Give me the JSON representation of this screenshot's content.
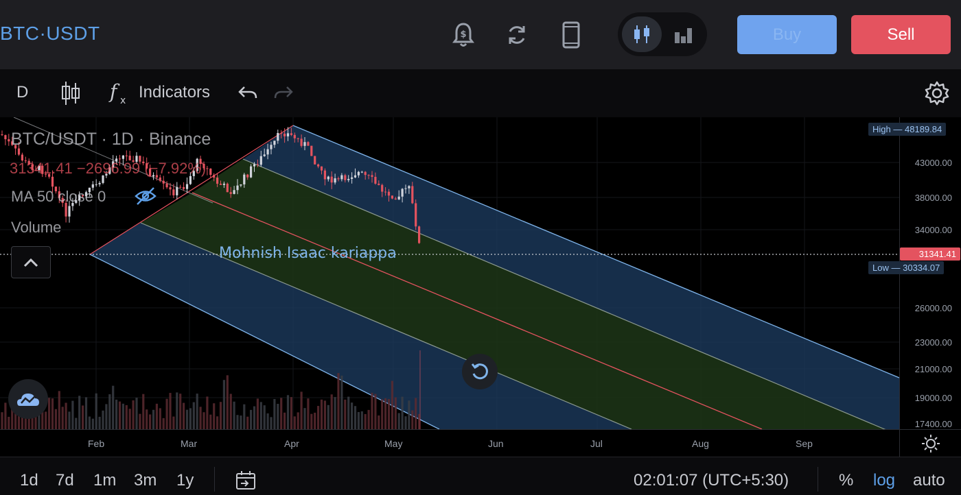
{
  "header": {
    "symbol": "BTC·USDT",
    "buy_label": "Buy",
    "sell_label": "Sell",
    "icons": [
      "price-alert-icon",
      "refresh-icon",
      "device-icon",
      "candles-icon",
      "bars-icon"
    ],
    "colors": {
      "buy": "#6fa3ee",
      "sell": "#e4535f",
      "symbol": "#5ea0e8"
    }
  },
  "toolbar": {
    "interval": "D",
    "indicators_label": "Indicators",
    "icons": [
      "candlestick-type-icon",
      "fx-icon",
      "undo-icon",
      "redo-icon",
      "settings-icon"
    ]
  },
  "legend": {
    "title": "BTC/USDT · 1D · Binance",
    "price_line": "31341.41 −2696.99 (−7.92%)",
    "ma_line": "MA 50 close 0",
    "volume_label": "Volume"
  },
  "annotation": {
    "text": "Mohnish Isaac kariappa"
  },
  "price_axis": {
    "labels": [
      "43000.00",
      "38000.00",
      "34000.00",
      "26000.00",
      "23000.00",
      "21000.00",
      "19000.00",
      "17400.00"
    ],
    "high_tag": {
      "label": "High",
      "value": "48189.84"
    },
    "last_price": "31341.41",
    "low_tag": {
      "label": "Low",
      "value": "30334.07"
    }
  },
  "time_axis": {
    "labels": [
      "Feb",
      "Mar",
      "Apr",
      "May",
      "Jun",
      "Jul",
      "Aug",
      "Sep"
    ]
  },
  "bottom_bar": {
    "ranges": [
      "1d",
      "7d",
      "1m",
      "3m",
      "1y"
    ],
    "time": "02:01:07 (UTC+5:30)",
    "percent_label": "%",
    "log_label": "log",
    "auto_label": "auto"
  },
  "colors": {
    "up": "#d1d4dc",
    "down": "#e4535f",
    "channel_outer": "#1c3a5c",
    "channel_inner": "#1c3316",
    "median_line": "#e4535f"
  }
}
